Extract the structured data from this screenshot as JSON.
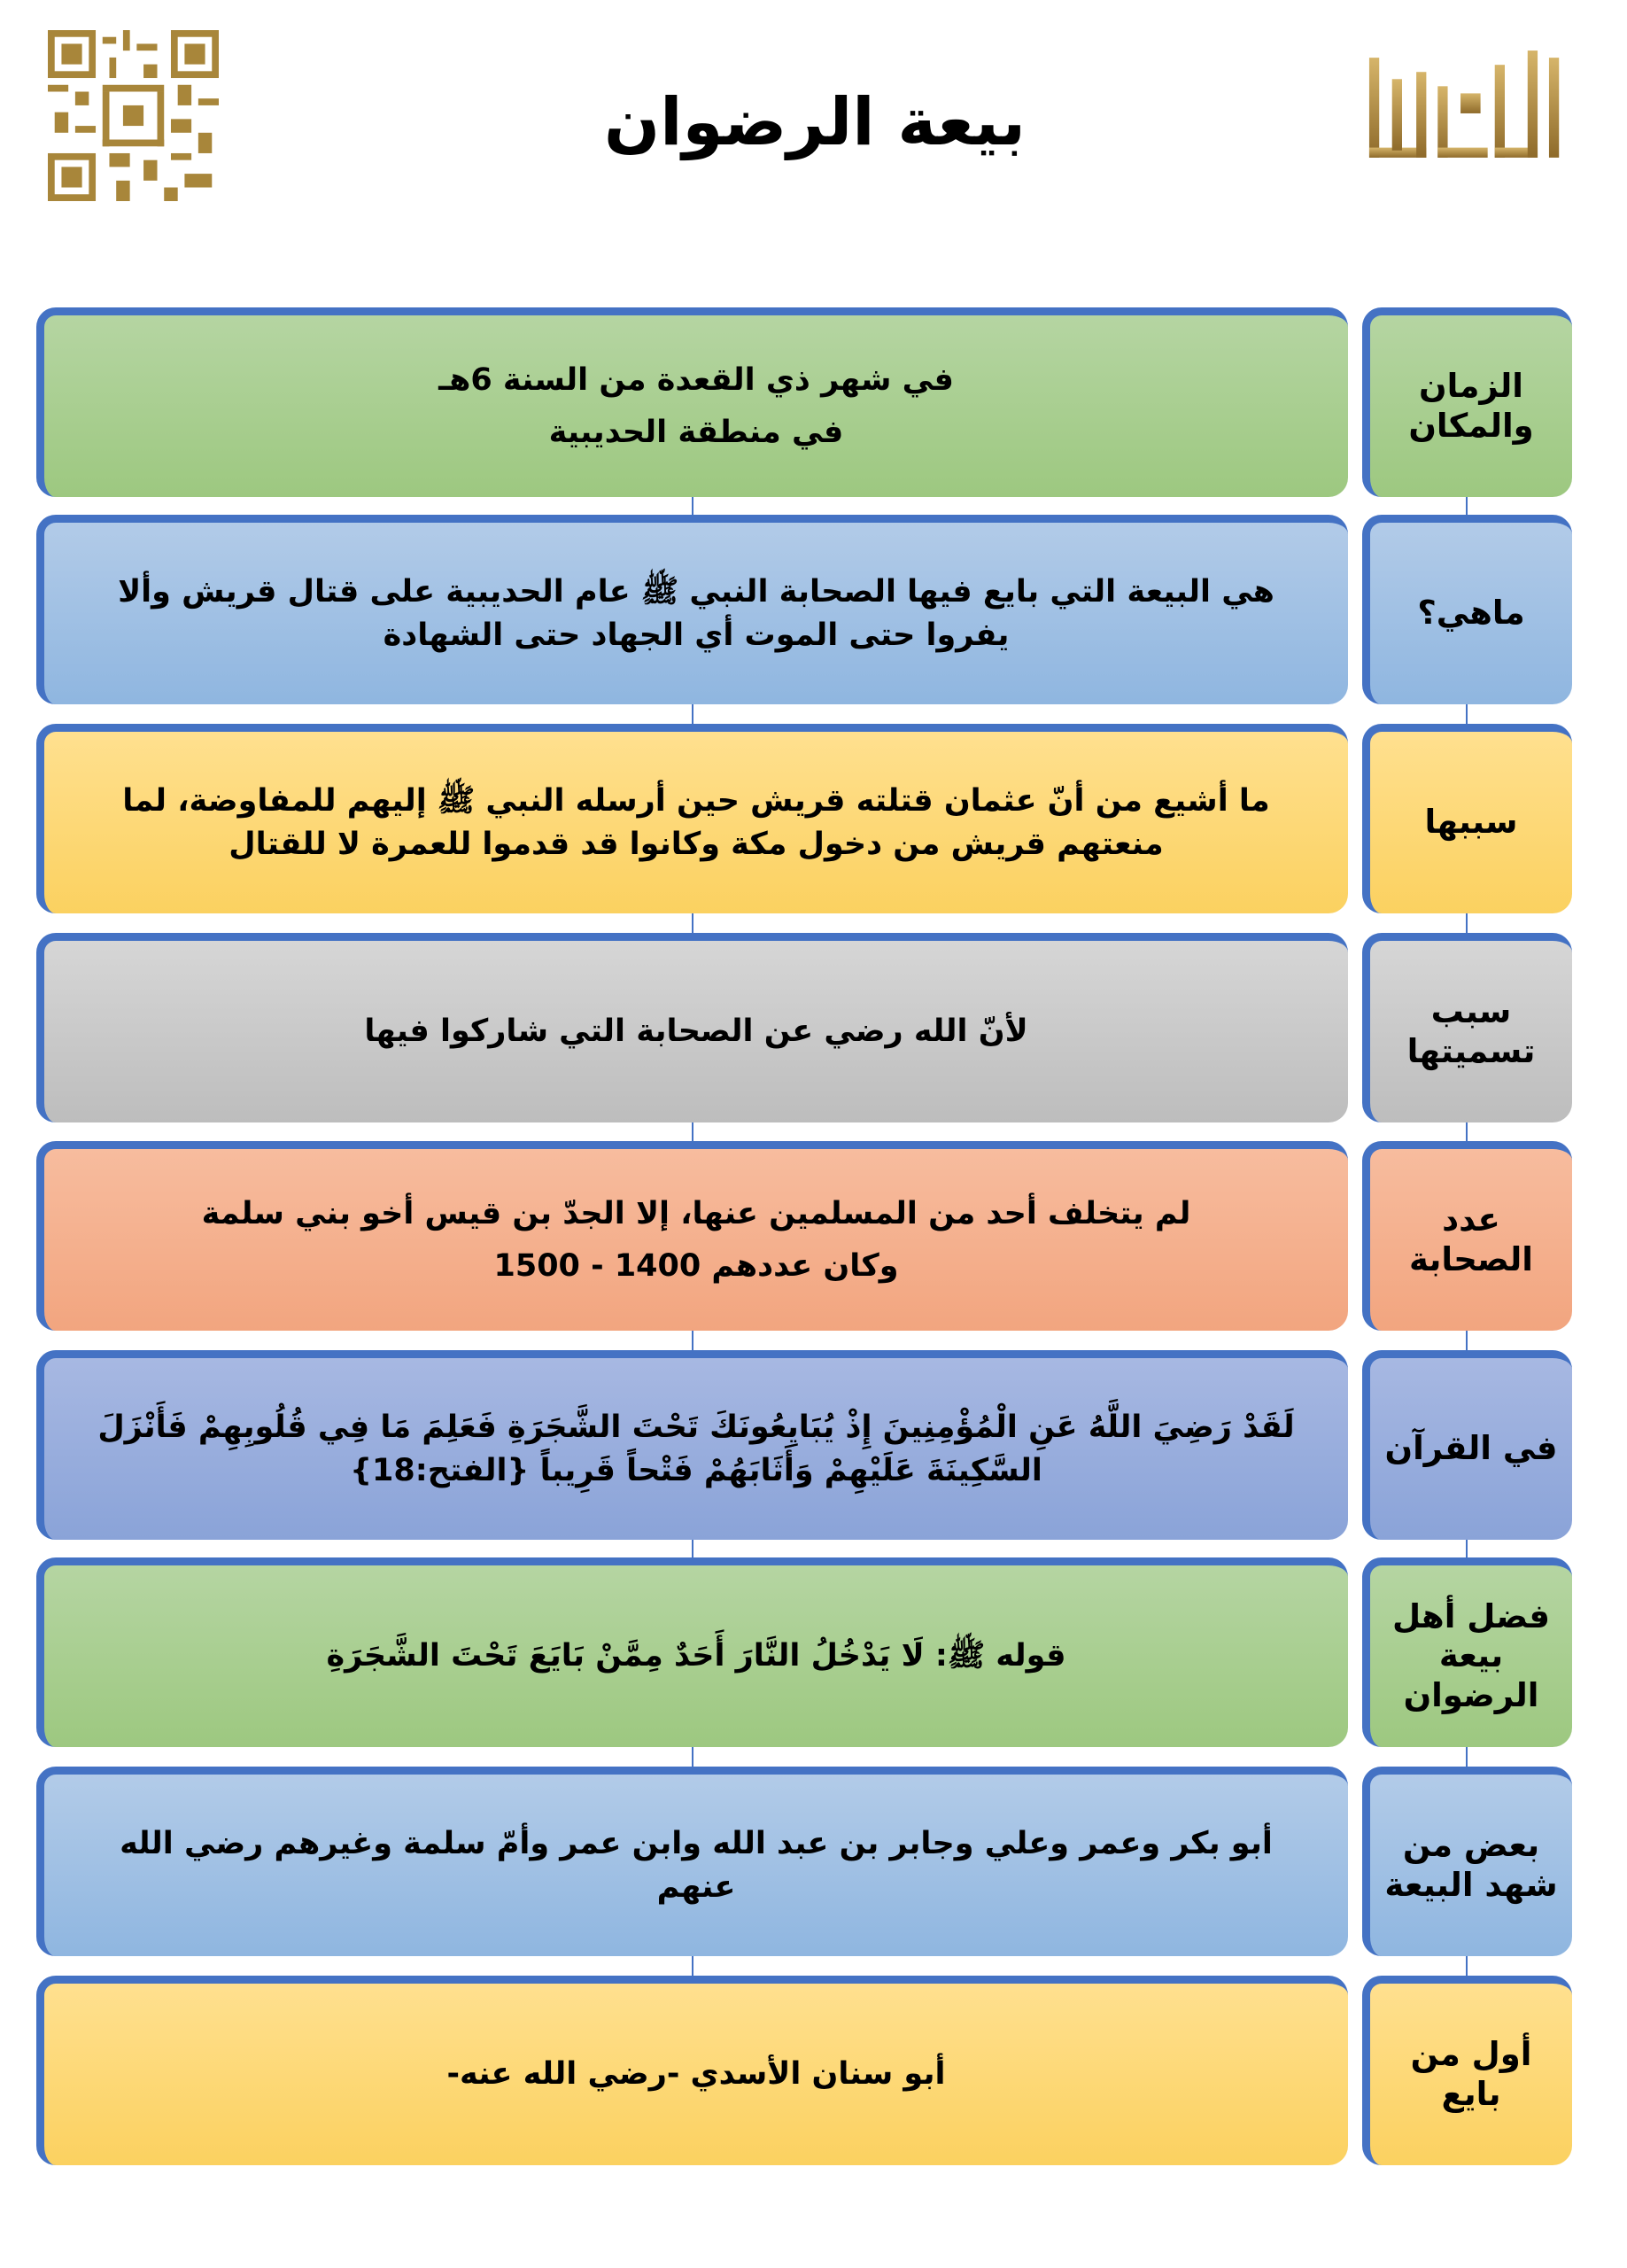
{
  "header": {
    "title": "بيعة الرضوان",
    "logo_text": "تاريخنا",
    "qr_code": "qr-code"
  },
  "rows": [
    {
      "label": "الزمان والمكان",
      "lines": [
        "في شهر ذي القعدة من السنة 6هـ",
        "في منطقة الحديبية"
      ],
      "color": "#a9d18e"
    },
    {
      "label": "ماهي؟",
      "lines": [
        "هي البيعة التي بايع فيها الصحابة النبي ﷺ عام الحديبية على قتال قريش وألا يفروا حتى الموت أي الجهاد حتى الشهادة"
      ],
      "color": "#9dc3e6"
    },
    {
      "label": "سببها",
      "lines": [
        "ما أشيع من أنّ عثمان قتلته قريش حين أرسله النبي ﷺ إليهم للمفاوضة، لما منعتهم قريش من دخول مكة وكانوا قد قدموا للعمرة لا للقتال"
      ],
      "color": "#ffd966"
    },
    {
      "label": "سبب تسميتها",
      "lines": [
        "لأنّ الله رضي عن الصحابة التي شاركوا فيها"
      ],
      "color": "#c9c9c9"
    },
    {
      "label": "عدد الصحابة",
      "lines": [
        "لم يتخلف أحد من المسلمين عنها، إلا الجدّ بن قيس أخو بني سلمة",
        "وكان عددهم 1400 - 1500"
      ],
      "color": "#f4b183"
    },
    {
      "label": "في القرآن",
      "lines": [
        "لَقَدْ رَضِيَ اللَّهُ عَنِ الْمُؤْمِنِينَ إِذْ يُبَايِعُونَكَ تَحْتَ الشَّجَرَةِ فَعَلِمَ مَا فِي قُلُوبِهِمْ فَأَنْزَلَ السَّكِينَةَ عَلَيْهِمْ وَأَثَابَهُمْ فَتْحاً قَرِيباً {الفتح:18}"
      ],
      "color": "#8faadc"
    },
    {
      "label": "فضل أهل بيعة الرضوان",
      "lines": [
        "قوله ﷺ: لَا يَدْخُلُ النَّارَ أَحَدٌ مِمَّنْ بَايَعَ تَحْتَ الشَّجَرَةِ"
      ],
      "color": "#a9d18e"
    },
    {
      "label": "بعض من شهد البيعة",
      "lines": [
        "أبو بكر وعمر وعلي وجابر بن عبد الله وابن عمر وأمّ سلمة وغيرهم رضي الله عنهم"
      ],
      "color": "#9dc3e6"
    },
    {
      "label": "أول من بايع",
      "lines": [
        "أبو سنان الأسدي -رضي الله عنه-"
      ],
      "color": "#ffd966"
    }
  ]
}
